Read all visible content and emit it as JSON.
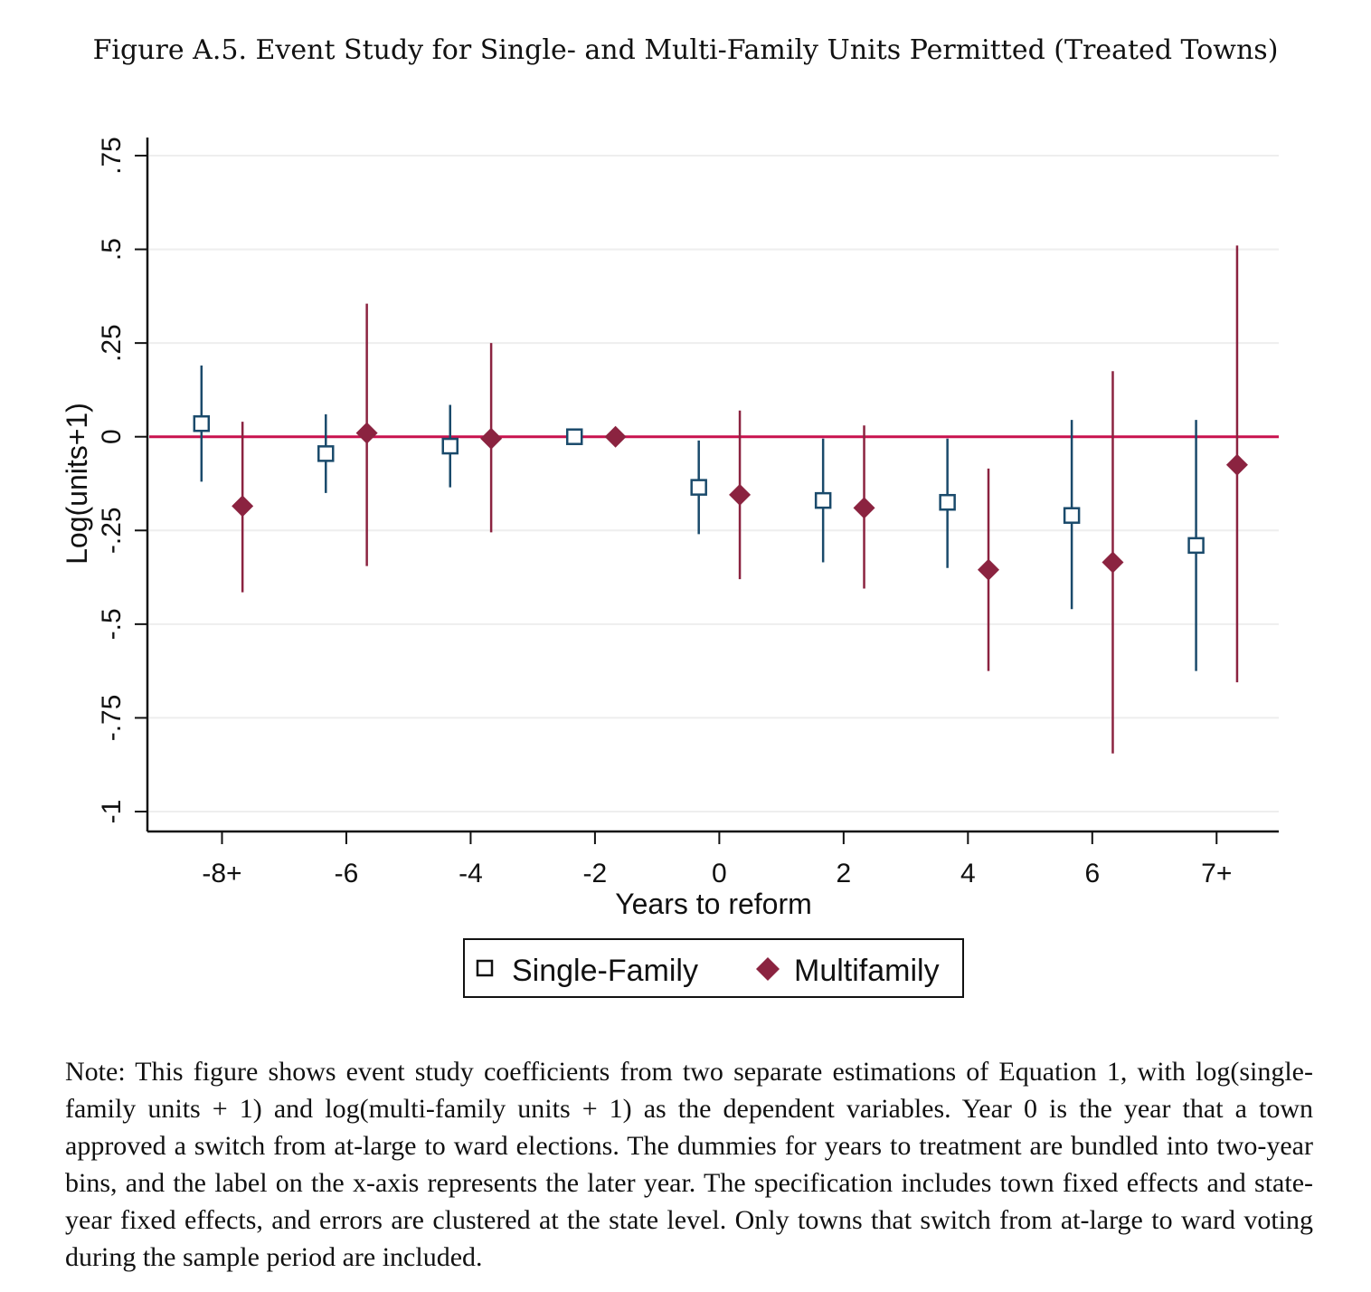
{
  "title": "Figure A.5. Event Study for Single- and Multi-Family Units Permitted (Treated Towns)",
  "note": "Note: This figure shows event study coefficients from two separate estimations of Equation 1, with log(single-family units + 1) and log(multi-family units + 1) as the dependent variables. Year 0 is the year that a town approved a switch from at-large to ward elections. The dummies for years to treatment are bundled into two-year bins, and the label on the x-axis represents the later year. The specification includes town fixed effects and state-year fixed effects, and errors are clustered at the state level. Only towns that switch from at-large to ward voting during the sample period are included.",
  "colors": {
    "single_family": "#1a4a6b",
    "multifamily": "#8b2340",
    "reference_line": "#c8124e",
    "grid": "#eeeeee"
  },
  "chart_data": {
    "type": "scatter",
    "title": "",
    "xlabel": "Years to reform",
    "ylabel": "Log(units+1)",
    "ylim": [
      -1,
      0.75
    ],
    "xlim": [
      -9.2,
      9.0
    ],
    "yticks": [
      {
        "value": 0.75,
        "label": ".75"
      },
      {
        "value": 0.5,
        "label": ".5"
      },
      {
        "value": 0.25,
        "label": ".25"
      },
      {
        "value": 0,
        "label": "0"
      },
      {
        "value": -0.25,
        "label": "-.25"
      },
      {
        "value": -0.5,
        "label": "-.5"
      },
      {
        "value": -0.75,
        "label": "-.75"
      },
      {
        "value": -1,
        "label": "-1"
      }
    ],
    "xticks": [
      {
        "value": -8,
        "label": "-8+"
      },
      {
        "value": -6,
        "label": "-6"
      },
      {
        "value": -4,
        "label": "-4"
      },
      {
        "value": -2,
        "label": "-2"
      },
      {
        "value": 0,
        "label": "0"
      },
      {
        "value": 2,
        "label": "2"
      },
      {
        "value": 4,
        "label": "4"
      },
      {
        "value": 6,
        "label": "6"
      },
      {
        "value": 8,
        "label": "7+"
      }
    ],
    "grid": true,
    "reference_line_y": 0,
    "legend_position": "bottom",
    "series": [
      {
        "name": "Single-Family",
        "marker": "hollow-square",
        "points": [
          {
            "x": -8,
            "y": 0.035,
            "lo": -0.12,
            "hi": 0.19
          },
          {
            "x": -6,
            "y": -0.045,
            "lo": -0.15,
            "hi": 0.06
          },
          {
            "x": -4,
            "y": -0.025,
            "lo": -0.135,
            "hi": 0.085
          },
          {
            "x": -2,
            "y": 0.0,
            "lo": 0.0,
            "hi": 0.0
          },
          {
            "x": 0,
            "y": -0.135,
            "lo": -0.26,
            "hi": -0.01
          },
          {
            "x": 2,
            "y": -0.17,
            "lo": -0.335,
            "hi": -0.005
          },
          {
            "x": 4,
            "y": -0.175,
            "lo": -0.35,
            "hi": -0.005
          },
          {
            "x": 6,
            "y": -0.21,
            "lo": -0.46,
            "hi": 0.045
          },
          {
            "x": 8,
            "y": -0.29,
            "lo": -0.625,
            "hi": 0.045
          }
        ]
      },
      {
        "name": "Multifamily",
        "marker": "filled-diamond",
        "points": [
          {
            "x": -8,
            "y": -0.185,
            "lo": -0.415,
            "hi": 0.04
          },
          {
            "x": -6,
            "y": 0.01,
            "lo": -0.345,
            "hi": 0.355
          },
          {
            "x": -4,
            "y": -0.005,
            "lo": -0.255,
            "hi": 0.25
          },
          {
            "x": -2,
            "y": 0.0,
            "lo": 0.0,
            "hi": 0.0
          },
          {
            "x": 0,
            "y": -0.155,
            "lo": -0.38,
            "hi": 0.07
          },
          {
            "x": 2,
            "y": -0.19,
            "lo": -0.405,
            "hi": 0.03
          },
          {
            "x": 4,
            "y": -0.355,
            "lo": -0.625,
            "hi": -0.085
          },
          {
            "x": 6,
            "y": -0.335,
            "lo": -0.845,
            "hi": 0.175
          },
          {
            "x": 8,
            "y": -0.075,
            "lo": -0.655,
            "hi": 0.51
          }
        ]
      }
    ]
  }
}
